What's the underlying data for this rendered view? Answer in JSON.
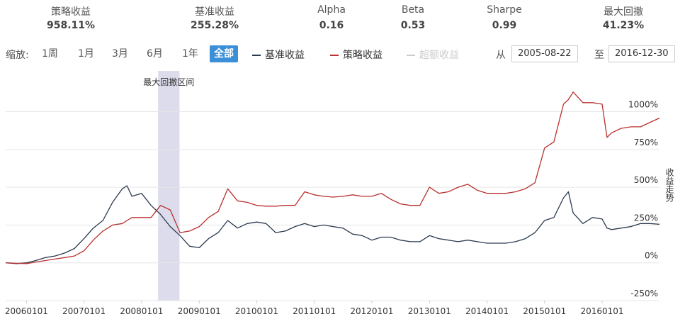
{
  "stats": [
    {
      "label": "策略收益",
      "value": "958.11%"
    },
    {
      "label": "基准收益",
      "value": "255.28%"
    },
    {
      "label": "Alpha",
      "value": "0.16"
    },
    {
      "label": "Beta",
      "value": "0.53"
    },
    {
      "label": "Sharpe",
      "value": "0.99"
    },
    {
      "label": "最大回撤",
      "value": "41.23%"
    }
  ],
  "controls": {
    "zoom_label": "缩放:",
    "zoom": [
      "1周",
      "1月",
      "3月",
      "6月",
      "1年",
      "全部"
    ],
    "active_zoom": 5,
    "from_label": "从",
    "from": "2005-08-22",
    "to_label": "至",
    "to": "2016-12-30"
  },
  "chart_data": {
    "type": "line",
    "y_label": "收益走势",
    "annotation": "最大回撤区间",
    "drawdown_range": [
      "2008-04-15",
      "2008-08-29"
    ],
    "hidden_series": [
      {
        "name": "超额收益",
        "color": "#cccccc"
      }
    ],
    "x": [
      "2005-08-22",
      "2005-11-01",
      "2006-01-01",
      "2006-03-01",
      "2006-05-01",
      "2006-07-01",
      "2006-09-01",
      "2006-11-01",
      "2007-01-01",
      "2007-03-01",
      "2007-05-01",
      "2007-07-01",
      "2007-09-01",
      "2007-10-01",
      "2007-11-01",
      "2008-01-01",
      "2008-03-01",
      "2008-05-01",
      "2008-07-01",
      "2008-09-01",
      "2008-11-01",
      "2009-01-01",
      "2009-03-01",
      "2009-05-01",
      "2009-07-01",
      "2009-09-01",
      "2009-11-01",
      "2010-01-01",
      "2010-03-01",
      "2010-05-01",
      "2010-07-01",
      "2010-09-01",
      "2010-11-01",
      "2011-01-01",
      "2011-03-01",
      "2011-05-01",
      "2011-07-01",
      "2011-09-01",
      "2011-11-01",
      "2012-01-01",
      "2012-03-01",
      "2012-05-01",
      "2012-07-01",
      "2012-09-01",
      "2012-11-01",
      "2013-01-01",
      "2013-03-01",
      "2013-05-01",
      "2013-07-01",
      "2013-09-01",
      "2013-11-01",
      "2014-01-01",
      "2014-03-01",
      "2014-05-01",
      "2014-07-01",
      "2014-09-01",
      "2014-11-01",
      "2015-01-01",
      "2015-03-01",
      "2015-05-01",
      "2015-06-01",
      "2015-07-01",
      "2015-09-01",
      "2015-11-01",
      "2016-01-01",
      "2016-02-01",
      "2016-03-01",
      "2016-05-01",
      "2016-07-01",
      "2016-09-01",
      "2016-11-01",
      "2016-12-30"
    ],
    "series": [
      {
        "name": "基准收益",
        "color": "#2b3a4f",
        "values": [
          0,
          -5,
          0,
          15,
          35,
          45,
          65,
          95,
          160,
          230,
          280,
          400,
          490,
          510,
          440,
          460,
          380,
          320,
          240,
          180,
          110,
          100,
          160,
          200,
          280,
          230,
          260,
          270,
          260,
          200,
          210,
          240,
          260,
          240,
          250,
          240,
          230,
          190,
          180,
          150,
          170,
          170,
          150,
          140,
          140,
          180,
          160,
          150,
          140,
          150,
          140,
          130,
          130,
          130,
          140,
          160,
          200,
          280,
          300,
          430,
          470,
          330,
          260,
          300,
          290,
          230,
          220,
          230,
          240,
          260,
          260,
          255
        ]
      },
      {
        "name": "策略收益",
        "color": "#b8312f",
        "values": [
          0,
          -3,
          -5,
          5,
          15,
          25,
          35,
          45,
          80,
          150,
          210,
          250,
          260,
          280,
          300,
          300,
          300,
          380,
          350,
          200,
          210,
          240,
          300,
          340,
          490,
          410,
          400,
          380,
          375,
          375,
          380,
          380,
          470,
          450,
          440,
          435,
          440,
          450,
          440,
          440,
          460,
          420,
          390,
          380,
          380,
          500,
          460,
          470,
          500,
          520,
          480,
          460,
          460,
          460,
          470,
          490,
          530,
          760,
          800,
          1050,
          1080,
          1130,
          1060,
          1060,
          1050,
          830,
          860,
          890,
          900,
          900,
          930,
          958
        ]
      }
    ],
    "xlim": [
      "2005-08-22",
      "2016-12-30"
    ],
    "xticks": [
      {
        "value": "2006-01-01",
        "label": "20060101"
      },
      {
        "value": "2007-01-01",
        "label": "20070101"
      },
      {
        "value": "2008-01-01",
        "label": "20080101"
      },
      {
        "value": "2009-01-01",
        "label": "20090101"
      },
      {
        "value": "2010-01-01",
        "label": "20100101"
      },
      {
        "value": "2011-01-01",
        "label": "20110101"
      },
      {
        "value": "2012-01-01",
        "label": "20120101"
      },
      {
        "value": "2013-01-01",
        "label": "20130101"
      },
      {
        "value": "2014-01-01",
        "label": "20140101"
      },
      {
        "value": "2015-01-01",
        "label": "20150101"
      },
      {
        "value": "2016-01-01",
        "label": "20160101"
      }
    ],
    "ylim": [
      -250,
      1270
    ],
    "yticks": [
      {
        "value": -250,
        "label": "-250%"
      },
      {
        "value": 0,
        "label": "0%"
      },
      {
        "value": 250,
        "label": "250%"
      },
      {
        "value": 500,
        "label": "500%"
      },
      {
        "value": 750,
        "label": "750%"
      },
      {
        "value": 1000,
        "label": "1000%"
      }
    ],
    "grid": true
  }
}
